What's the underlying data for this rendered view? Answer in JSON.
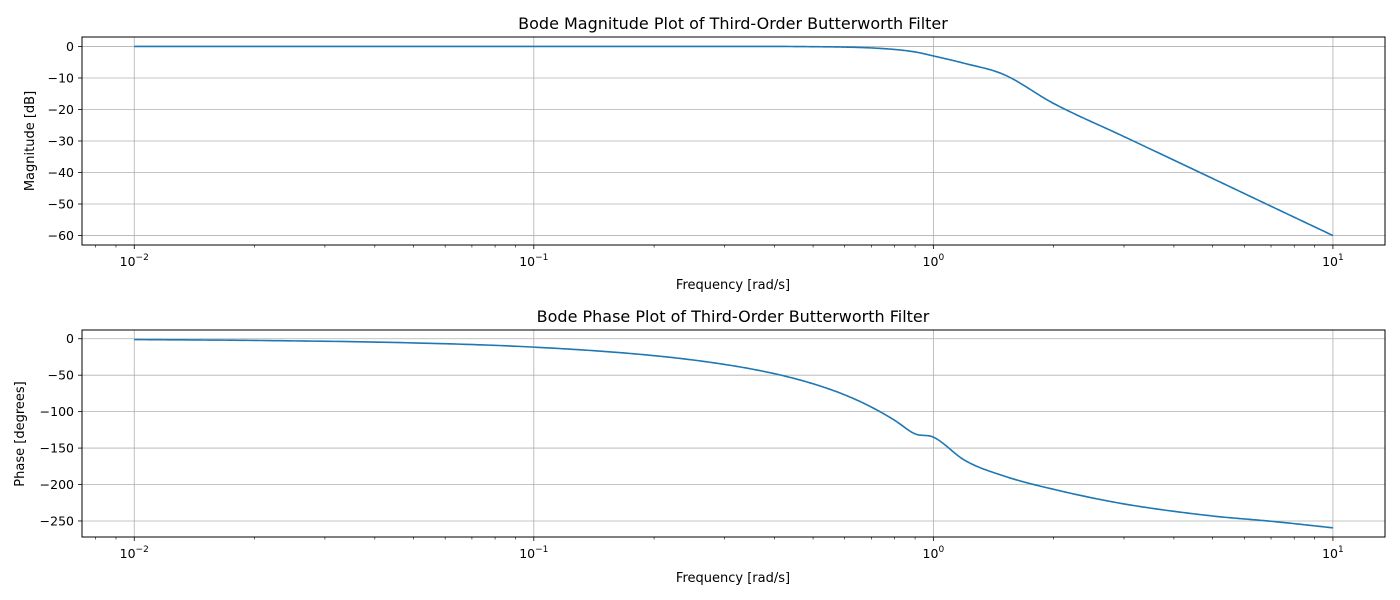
{
  "chart_data": [
    {
      "type": "line",
      "title": "Bode Magnitude Plot of Third-Order Butterworth Filter",
      "xlabel": "Frequency [rad/s]",
      "ylabel": "Magnitude [dB]",
      "x_scale": "log",
      "xlim": [
        0.0074,
        13.5
      ],
      "ylim": [
        -63,
        3
      ],
      "x_ticks": [
        0.01,
        0.1,
        1,
        10
      ],
      "x_tick_labels": [
        {
          "base": "10",
          "exp": "−2"
        },
        {
          "base": "10",
          "exp": "−1"
        },
        {
          "base": "10",
          "exp": "0"
        },
        {
          "base": "10",
          "exp": "1"
        }
      ],
      "y_ticks": [
        0,
        -10,
        -20,
        -30,
        -40,
        -50,
        -60
      ],
      "y_tick_labels": [
        "0",
        "−10",
        "−20",
        "−30",
        "−40",
        "−50",
        "−60"
      ],
      "grid": true,
      "series": [
        {
          "color": "#1f77b4",
          "x": [
            0.01,
            0.05,
            0.1,
            0.2,
            0.3,
            0.4,
            0.5,
            0.6,
            0.7,
            0.8,
            0.9,
            1.0,
            1.2,
            1.5,
            2,
            3,
            5,
            7,
            10
          ],
          "y": [
            0,
            0,
            0,
            0,
            0,
            0,
            -0.07,
            -0.2,
            -0.47,
            -0.96,
            -1.74,
            -3.01,
            -5.4,
            -8.9,
            -18.1,
            -28.6,
            -41.9,
            -50.7,
            -60.0
          ]
        }
      ]
    },
    {
      "type": "line",
      "title": "Bode Phase Plot of Third-Order Butterworth Filter",
      "xlabel": "Frequency [rad/s]",
      "ylabel": "Phase [degrees]",
      "x_scale": "log",
      "xlim": [
        0.0074,
        13.5
      ],
      "ylim": [
        -272,
        12
      ],
      "x_ticks": [
        0.01,
        0.1,
        1,
        10
      ],
      "x_tick_labels": [
        {
          "base": "10",
          "exp": "−2"
        },
        {
          "base": "10",
          "exp": "−1"
        },
        {
          "base": "10",
          "exp": "0"
        },
        {
          "base": "10",
          "exp": "1"
        }
      ],
      "y_ticks": [
        0,
        -50,
        -100,
        -150,
        -200,
        -250
      ],
      "y_tick_labels": [
        "0",
        "−50",
        "−100",
        "−150",
        "−200",
        "−250"
      ],
      "grid": true,
      "series": [
        {
          "color": "#1f77b4",
          "x": [
            0.01,
            0.02,
            0.05,
            0.1,
            0.2,
            0.3,
            0.4,
            0.5,
            0.6,
            0.7,
            0.8,
            0.9,
            1.0,
            1.2,
            1.5,
            2,
            3,
            5,
            7,
            10
          ],
          "y": [
            -1.1,
            -2.3,
            -5.7,
            -11.5,
            -23.2,
            -35.2,
            -47.9,
            -61.8,
            -77.0,
            -93.8,
            -111.9,
            -130.5,
            -135,
            -167.0,
            -188.2,
            -206.6,
            -226.6,
            -243.2,
            -250.4,
            -259.4
          ]
        }
      ]
    }
  ]
}
